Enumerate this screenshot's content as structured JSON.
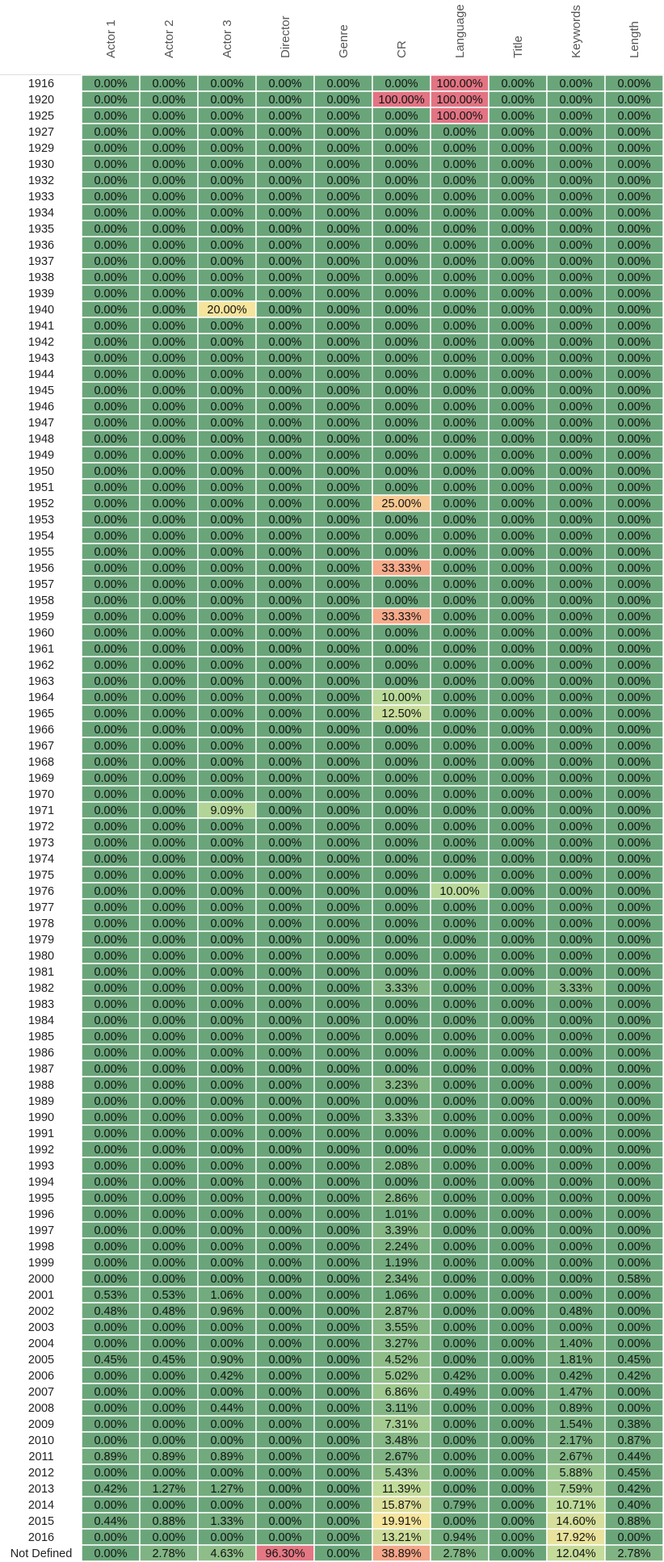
{
  "chart_data": {
    "type": "heatmap",
    "title": "",
    "columns": [
      "Actor 1",
      "Actor 2",
      "Actor 3",
      "Director",
      "Genre",
      "CR",
      "Language",
      "Title",
      "Keywords",
      "Length"
    ],
    "rows": [
      "1916",
      "1920",
      "1925",
      "1927",
      "1929",
      "1930",
      "1932",
      "1933",
      "1934",
      "1935",
      "1936",
      "1937",
      "1938",
      "1939",
      "1940",
      "1941",
      "1942",
      "1943",
      "1944",
      "1945",
      "1946",
      "1947",
      "1948",
      "1949",
      "1950",
      "1951",
      "1952",
      "1953",
      "1954",
      "1955",
      "1956",
      "1957",
      "1958",
      "1959",
      "1960",
      "1961",
      "1962",
      "1963",
      "1964",
      "1965",
      "1966",
      "1967",
      "1968",
      "1969",
      "1970",
      "1971",
      "1972",
      "1973",
      "1974",
      "1975",
      "1976",
      "1977",
      "1978",
      "1979",
      "1980",
      "1981",
      "1982",
      "1983",
      "1984",
      "1985",
      "1986",
      "1987",
      "1988",
      "1989",
      "1990",
      "1991",
      "1992",
      "1993",
      "1994",
      "1995",
      "1996",
      "1997",
      "1998",
      "1999",
      "2000",
      "2001",
      "2002",
      "2003",
      "2004",
      "2005",
      "2006",
      "2007",
      "2008",
      "2009",
      "2010",
      "2011",
      "2012",
      "2013",
      "2014",
      "2015",
      "2016",
      "Not Defined"
    ],
    "values": [
      [
        0,
        0,
        0,
        0,
        0,
        0,
        100,
        0,
        0,
        0
      ],
      [
        0,
        0,
        0,
        0,
        0,
        100,
        100,
        0,
        0,
        0
      ],
      [
        0,
        0,
        0,
        0,
        0,
        0,
        100,
        0,
        0,
        0
      ],
      [
        0,
        0,
        0,
        0,
        0,
        0,
        0,
        0,
        0,
        0
      ],
      [
        0,
        0,
        0,
        0,
        0,
        0,
        0,
        0,
        0,
        0
      ],
      [
        0,
        0,
        0,
        0,
        0,
        0,
        0,
        0,
        0,
        0
      ],
      [
        0,
        0,
        0,
        0,
        0,
        0,
        0,
        0,
        0,
        0
      ],
      [
        0,
        0,
        0,
        0,
        0,
        0,
        0,
        0,
        0,
        0
      ],
      [
        0,
        0,
        0,
        0,
        0,
        0,
        0,
        0,
        0,
        0
      ],
      [
        0,
        0,
        0,
        0,
        0,
        0,
        0,
        0,
        0,
        0
      ],
      [
        0,
        0,
        0,
        0,
        0,
        0,
        0,
        0,
        0,
        0
      ],
      [
        0,
        0,
        0,
        0,
        0,
        0,
        0,
        0,
        0,
        0
      ],
      [
        0,
        0,
        0,
        0,
        0,
        0,
        0,
        0,
        0,
        0
      ],
      [
        0,
        0,
        0,
        0,
        0,
        0,
        0,
        0,
        0,
        0
      ],
      [
        0,
        0,
        20,
        0,
        0,
        0,
        0,
        0,
        0,
        0
      ],
      [
        0,
        0,
        0,
        0,
        0,
        0,
        0,
        0,
        0,
        0
      ],
      [
        0,
        0,
        0,
        0,
        0,
        0,
        0,
        0,
        0,
        0
      ],
      [
        0,
        0,
        0,
        0,
        0,
        0,
        0,
        0,
        0,
        0
      ],
      [
        0,
        0,
        0,
        0,
        0,
        0,
        0,
        0,
        0,
        0
      ],
      [
        0,
        0,
        0,
        0,
        0,
        0,
        0,
        0,
        0,
        0
      ],
      [
        0,
        0,
        0,
        0,
        0,
        0,
        0,
        0,
        0,
        0
      ],
      [
        0,
        0,
        0,
        0,
        0,
        0,
        0,
        0,
        0,
        0
      ],
      [
        0,
        0,
        0,
        0,
        0,
        0,
        0,
        0,
        0,
        0
      ],
      [
        0,
        0,
        0,
        0,
        0,
        0,
        0,
        0,
        0,
        0
      ],
      [
        0,
        0,
        0,
        0,
        0,
        0,
        0,
        0,
        0,
        0
      ],
      [
        0,
        0,
        0,
        0,
        0,
        0,
        0,
        0,
        0,
        0
      ],
      [
        0,
        0,
        0,
        0,
        0,
        25,
        0,
        0,
        0,
        0
      ],
      [
        0,
        0,
        0,
        0,
        0,
        0,
        0,
        0,
        0,
        0
      ],
      [
        0,
        0,
        0,
        0,
        0,
        0,
        0,
        0,
        0,
        0
      ],
      [
        0,
        0,
        0,
        0,
        0,
        0,
        0,
        0,
        0,
        0
      ],
      [
        0,
        0,
        0,
        0,
        0,
        33.33,
        0,
        0,
        0,
        0
      ],
      [
        0,
        0,
        0,
        0,
        0,
        0,
        0,
        0,
        0,
        0
      ],
      [
        0,
        0,
        0,
        0,
        0,
        0,
        0,
        0,
        0,
        0
      ],
      [
        0,
        0,
        0,
        0,
        0,
        33.33,
        0,
        0,
        0,
        0
      ],
      [
        0,
        0,
        0,
        0,
        0,
        0,
        0,
        0,
        0,
        0
      ],
      [
        0,
        0,
        0,
        0,
        0,
        0,
        0,
        0,
        0,
        0
      ],
      [
        0,
        0,
        0,
        0,
        0,
        0,
        0,
        0,
        0,
        0
      ],
      [
        0,
        0,
        0,
        0,
        0,
        0,
        0,
        0,
        0,
        0
      ],
      [
        0,
        0,
        0,
        0,
        0,
        10,
        0,
        0,
        0,
        0
      ],
      [
        0,
        0,
        0,
        0,
        0,
        12.5,
        0,
        0,
        0,
        0
      ],
      [
        0,
        0,
        0,
        0,
        0,
        0,
        0,
        0,
        0,
        0
      ],
      [
        0,
        0,
        0,
        0,
        0,
        0,
        0,
        0,
        0,
        0
      ],
      [
        0,
        0,
        0,
        0,
        0,
        0,
        0,
        0,
        0,
        0
      ],
      [
        0,
        0,
        0,
        0,
        0,
        0,
        0,
        0,
        0,
        0
      ],
      [
        0,
        0,
        0,
        0,
        0,
        0,
        0,
        0,
        0,
        0
      ],
      [
        0,
        0,
        9.09,
        0,
        0,
        0,
        0,
        0,
        0,
        0
      ],
      [
        0,
        0,
        0,
        0,
        0,
        0,
        0,
        0,
        0,
        0
      ],
      [
        0,
        0,
        0,
        0,
        0,
        0,
        0,
        0,
        0,
        0
      ],
      [
        0,
        0,
        0,
        0,
        0,
        0,
        0,
        0,
        0,
        0
      ],
      [
        0,
        0,
        0,
        0,
        0,
        0,
        0,
        0,
        0,
        0
      ],
      [
        0,
        0,
        0,
        0,
        0,
        0,
        10,
        0,
        0,
        0
      ],
      [
        0,
        0,
        0,
        0,
        0,
        0,
        0,
        0,
        0,
        0
      ],
      [
        0,
        0,
        0,
        0,
        0,
        0,
        0,
        0,
        0,
        0
      ],
      [
        0,
        0,
        0,
        0,
        0,
        0,
        0,
        0,
        0,
        0
      ],
      [
        0,
        0,
        0,
        0,
        0,
        0,
        0,
        0,
        0,
        0
      ],
      [
        0,
        0,
        0,
        0,
        0,
        0,
        0,
        0,
        0,
        0
      ],
      [
        0,
        0,
        0,
        0,
        0,
        3.33,
        0,
        0,
        3.33,
        0
      ],
      [
        0,
        0,
        0,
        0,
        0,
        0,
        0,
        0,
        0,
        0
      ],
      [
        0,
        0,
        0,
        0,
        0,
        0,
        0,
        0,
        0,
        0
      ],
      [
        0,
        0,
        0,
        0,
        0,
        0,
        0,
        0,
        0,
        0
      ],
      [
        0,
        0,
        0,
        0,
        0,
        0,
        0,
        0,
        0,
        0
      ],
      [
        0,
        0,
        0,
        0,
        0,
        0,
        0,
        0,
        0,
        0
      ],
      [
        0,
        0,
        0,
        0,
        0,
        3.23,
        0,
        0,
        0,
        0
      ],
      [
        0,
        0,
        0,
        0,
        0,
        0,
        0,
        0,
        0,
        0
      ],
      [
        0,
        0,
        0,
        0,
        0,
        3.33,
        0,
        0,
        0,
        0
      ],
      [
        0,
        0,
        0,
        0,
        0,
        0,
        0,
        0,
        0,
        0
      ],
      [
        0,
        0,
        0,
        0,
        0,
        0,
        0,
        0,
        0,
        0
      ],
      [
        0,
        0,
        0,
        0,
        0,
        2.08,
        0,
        0,
        0,
        0
      ],
      [
        0,
        0,
        0,
        0,
        0,
        0,
        0,
        0,
        0,
        0
      ],
      [
        0,
        0,
        0,
        0,
        0,
        2.86,
        0,
        0,
        0,
        0
      ],
      [
        0,
        0,
        0,
        0,
        0,
        1.01,
        0,
        0,
        0,
        0
      ],
      [
        0,
        0,
        0,
        0,
        0,
        3.39,
        0,
        0,
        0,
        0
      ],
      [
        0,
        0,
        0,
        0,
        0,
        2.24,
        0,
        0,
        0,
        0
      ],
      [
        0,
        0,
        0,
        0,
        0,
        1.19,
        0,
        0,
        0,
        0
      ],
      [
        0,
        0,
        0,
        0,
        0,
        2.34,
        0,
        0,
        0,
        0.58
      ],
      [
        0.53,
        0.53,
        1.06,
        0,
        0,
        1.06,
        0,
        0,
        0,
        0
      ],
      [
        0.48,
        0.48,
        0.96,
        0,
        0,
        2.87,
        0,
        0,
        0.48,
        0
      ],
      [
        0,
        0,
        0,
        0,
        0,
        3.55,
        0,
        0,
        0,
        0
      ],
      [
        0,
        0,
        0,
        0,
        0,
        3.27,
        0,
        0,
        1.4,
        0
      ],
      [
        0.45,
        0.45,
        0.9,
        0,
        0,
        4.52,
        0,
        0,
        1.81,
        0.45
      ],
      [
        0,
        0,
        0.42,
        0,
        0,
        5.02,
        0.42,
        0,
        0.42,
        0.42
      ],
      [
        0,
        0,
        0,
        0,
        0,
        6.86,
        0.49,
        0,
        1.47,
        0
      ],
      [
        0,
        0,
        0.44,
        0,
        0,
        3.11,
        0,
        0,
        0.89,
        0
      ],
      [
        0,
        0,
        0,
        0,
        0,
        7.31,
        0,
        0,
        1.54,
        0.38
      ],
      [
        0,
        0,
        0,
        0,
        0,
        3.48,
        0,
        0,
        2.17,
        0.87
      ],
      [
        0.89,
        0.89,
        0.89,
        0,
        0,
        2.67,
        0,
        0,
        2.67,
        0.44
      ],
      [
        0,
        0,
        0,
        0,
        0,
        5.43,
        0,
        0,
        5.88,
        0.45
      ],
      [
        0.42,
        1.27,
        1.27,
        0,
        0,
        11.39,
        0,
        0,
        7.59,
        0.42
      ],
      [
        0,
        0,
        0,
        0,
        0,
        15.87,
        0.79,
        0,
        10.71,
        0.4
      ],
      [
        0.44,
        0.88,
        1.33,
        0,
        0,
        19.91,
        0,
        0,
        14.6,
        0.88
      ],
      [
        0,
        0,
        0,
        0,
        0,
        13.21,
        0.94,
        0,
        17.92,
        0
      ],
      [
        0,
        2.78,
        4.63,
        96.3,
        0,
        38.89,
        2.78,
        0,
        12.04,
        2.78
      ]
    ],
    "value_format": "percent_2dp",
    "color_scale": [
      {
        "value": 0,
        "color": "#6aa57a"
      },
      {
        "value": 10,
        "color": "#b9d99a"
      },
      {
        "value": 20,
        "color": "#f5e49c"
      },
      {
        "value": 30,
        "color": "#f6ad8a"
      },
      {
        "value": 100,
        "color": "#e27483"
      }
    ],
    "legend": "none",
    "grid": true
  }
}
